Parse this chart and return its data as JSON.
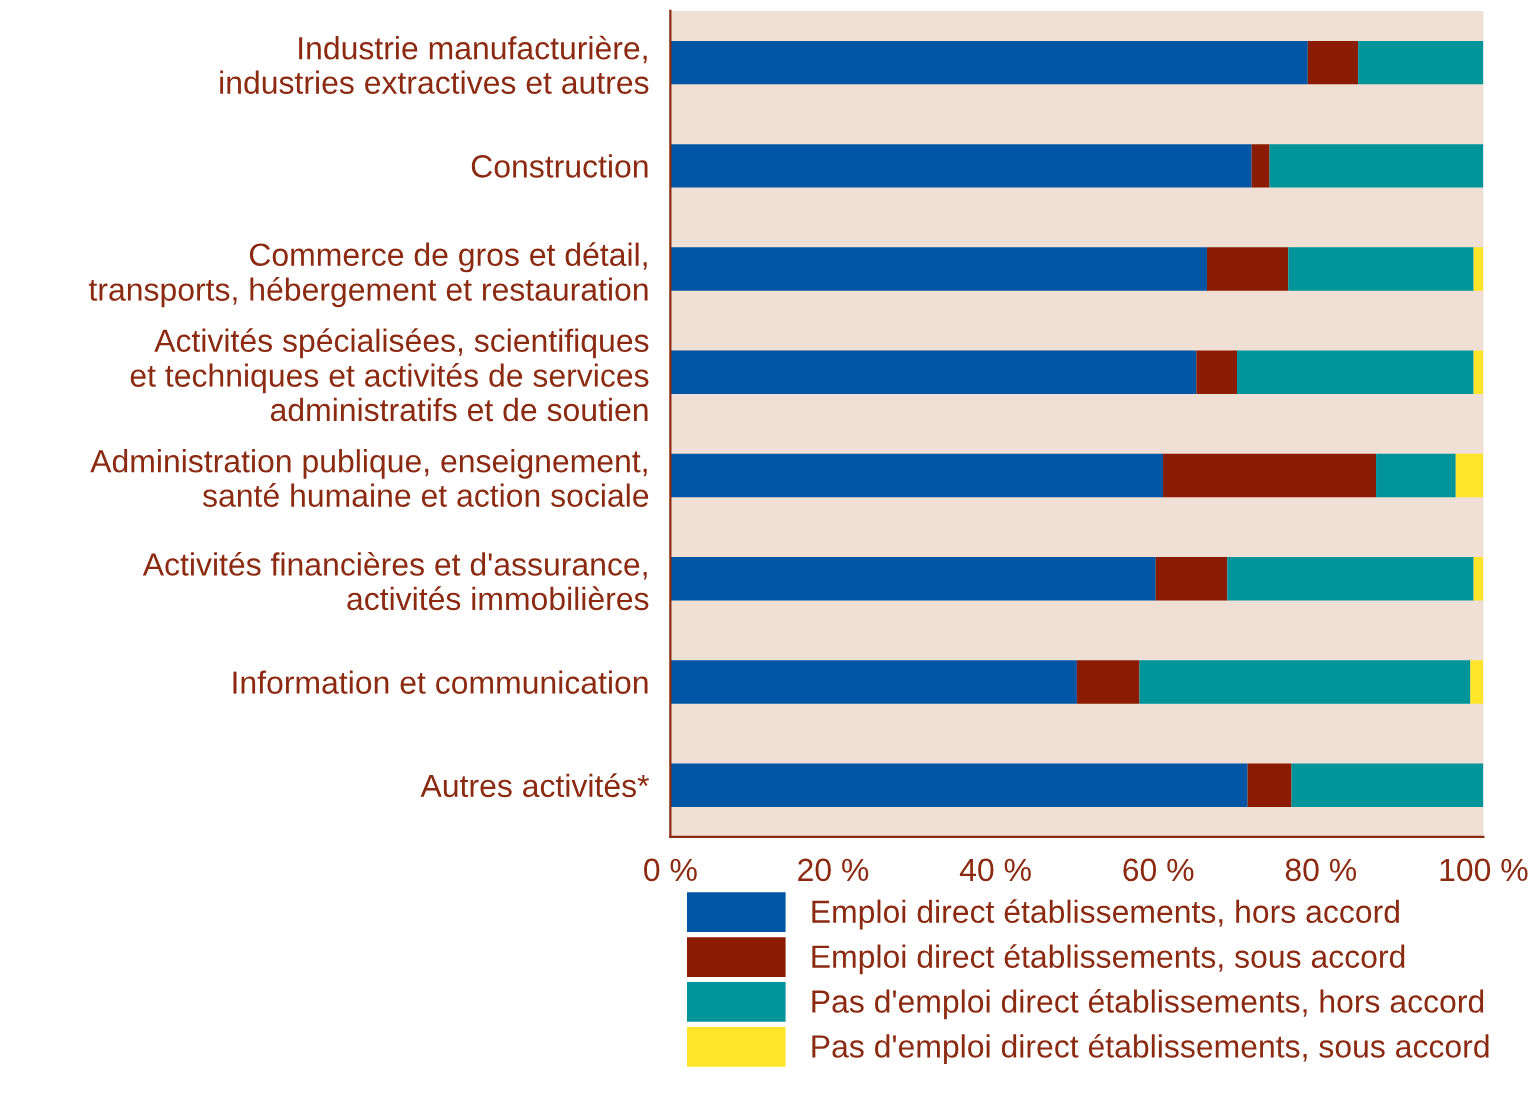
{
  "chart_data": {
    "type": "bar",
    "orientation": "horizontal",
    "stacked": true,
    "categories": [
      "Industrie manufacturière,\nindustries extractives et autres",
      "Construction",
      "Commerce de gros et détail,\ntransports, hébergement et restauration",
      "Activités spécialisées, scientifiques\net techniques et activités de services\nadministratifs et de soutien",
      "Administration publique, enseignement,\nsanté humaine et action sociale",
      "Activités financières et d'assurance,\nactivités immobilières",
      "Information et communication",
      "Autres activités*"
    ],
    "series": [
      {
        "name": "Emploi direct établissements, hors accord",
        "color": "#0055a4",
        "values": [
          78.4,
          71.5,
          66.0,
          64.7,
          60.6,
          59.7,
          50.0,
          71.0
        ]
      },
      {
        "name": "Emploi direct établissements, sous accord",
        "color": "#8b1c02",
        "values": [
          6.2,
          2.2,
          10.0,
          5.0,
          26.2,
          8.8,
          7.7,
          5.4
        ]
      },
      {
        "name": "Pas d'emploi direct établissements, hors accord",
        "color": "#00959a",
        "values": [
          15.4,
          26.3,
          22.8,
          29.1,
          9.8,
          30.3,
          40.7,
          23.6
        ]
      },
      {
        "name": "Pas d'emploi direct établissements, sous accord",
        "color": "#ffe52a",
        "values": [
          null,
          null,
          1.2,
          1.2,
          3.4,
          1.2,
          1.6,
          null
        ]
      }
    ],
    "xlim": [
      0,
      100
    ],
    "xticks": [
      {
        "value": 0,
        "label": "0 %"
      },
      {
        "value": 20,
        "label": "20 %"
      },
      {
        "value": 40,
        "label": "40 %"
      },
      {
        "value": 60,
        "label": "60 %"
      },
      {
        "value": 80,
        "label": "80 %"
      },
      {
        "value": 100,
        "label": "100 %"
      }
    ],
    "grid": false,
    "legend": "bottom"
  }
}
